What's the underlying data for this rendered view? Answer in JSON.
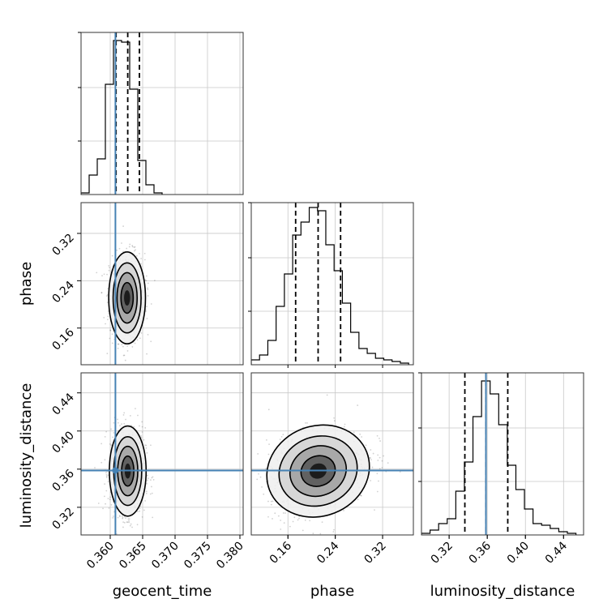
{
  "chart_data": {
    "type": "corner",
    "parameters": [
      "geocent_time",
      "phase",
      "luminosity_distance"
    ],
    "ranges": {
      "geocent_time": [
        0.3555,
        0.3805
      ],
      "phase": [
        0.098,
        0.372
      ],
      "luminosity_distance": [
        0.291,
        0.461
      ]
    },
    "ticks": {
      "geocent_time": [
        "0.360",
        "0.365",
        "0.370",
        "0.375",
        "0.380"
      ],
      "phase": [
        "0.16",
        "0.24",
        "0.32"
      ],
      "luminosity_distance": [
        "0.32",
        "0.36",
        "0.40",
        "0.44"
      ]
    },
    "truth": {
      "geocent_time": 0.3608,
      "phase": null,
      "luminosity_distance": 0.3586
    },
    "quantiles": {
      "geocent_time": [
        0.3609,
        0.3627,
        0.3645
      ],
      "phase": [
        0.173,
        0.211,
        0.249
      ],
      "luminosity_distance": [
        0.3365,
        0.3585,
        0.3815
      ]
    },
    "histograms": {
      "geocent_time": {
        "edges": [
          0.3555,
          0.35675,
          0.358,
          0.35925,
          0.3605,
          0.36175,
          0.363,
          0.36425,
          0.3655,
          0.36675,
          0.368
        ],
        "density": [
          0.01,
          0.12,
          0.22,
          0.68,
          0.95,
          0.94,
          0.65,
          0.21,
          0.06,
          0.01
        ]
      },
      "phase": {
        "edges": [
          0.098,
          0.112,
          0.126,
          0.14,
          0.154,
          0.168,
          0.182,
          0.196,
          0.21,
          0.224,
          0.238,
          0.252,
          0.266,
          0.28,
          0.294,
          0.308,
          0.322,
          0.336,
          0.35,
          0.364
        ],
        "density": [
          0.03,
          0.06,
          0.15,
          0.36,
          0.56,
          0.8,
          0.88,
          0.97,
          0.95,
          0.74,
          0.58,
          0.38,
          0.2,
          0.1,
          0.07,
          0.04,
          0.03,
          0.02,
          0.01
        ]
      },
      "luminosity_distance": {
        "edges": [
          0.291,
          0.3,
          0.309,
          0.318,
          0.327,
          0.336,
          0.345,
          0.354,
          0.363,
          0.372,
          0.381,
          0.39,
          0.399,
          0.408,
          0.417,
          0.426,
          0.435,
          0.444,
          0.453
        ],
        "density": [
          0.01,
          0.03,
          0.07,
          0.1,
          0.27,
          0.45,
          0.73,
          0.95,
          0.87,
          0.68,
          0.43,
          0.28,
          0.16,
          0.07,
          0.06,
          0.04,
          0.02,
          0.01
        ]
      }
    },
    "joint": [
      {
        "x": "geocent_time",
        "y": "phase",
        "mean": [
          0.3626,
          0.211
        ],
        "sd": [
          0.00135,
          0.037
        ]
      },
      {
        "x": "geocent_time",
        "y": "luminosity_distance",
        "mean": [
          0.3627,
          0.358
        ],
        "sd": [
          0.00135,
          0.0225
        ]
      },
      {
        "x": "phase",
        "y": "luminosity_distance",
        "mean": [
          0.211,
          0.358
        ],
        "sd": [
          0.042,
          0.0225
        ],
        "rho": 0.28
      }
    ],
    "grid": true,
    "truth_color": "#4682b4",
    "hist_color": "#000000",
    "quantile_style": "dashed"
  }
}
